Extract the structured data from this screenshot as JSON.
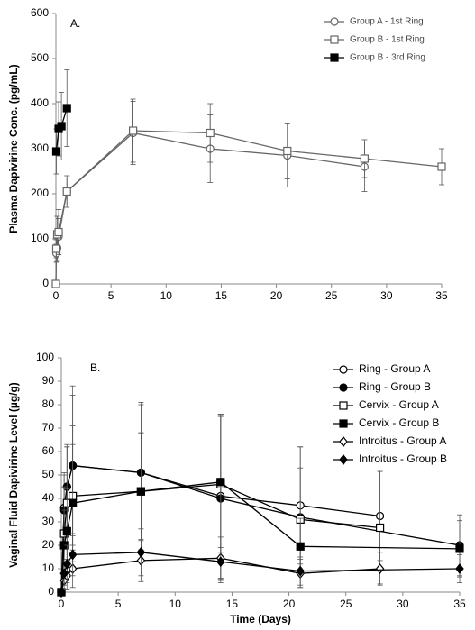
{
  "chart_data": [
    {
      "type": "line",
      "annotation": "A.",
      "y_label": "Plasma Dapivirine Conc. (pg/mL)",
      "xlim": [
        0,
        35
      ],
      "xticks": [
        0,
        5,
        10,
        15,
        20,
        25,
        30,
        35
      ],
      "ylim": [
        0,
        600
      ],
      "yticks": [
        0,
        100,
        200,
        300,
        400,
        500,
        600
      ],
      "legend": "upper right",
      "series": [
        {
          "name": "Group A - 1st Ring",
          "color": "#666666",
          "marker": "circle",
          "filled": false,
          "x": [
            0,
            0.04,
            0.125,
            0.25,
            1,
            7,
            14,
            21,
            28
          ],
          "values": [
            0,
            68,
            80,
            105,
            205,
            335,
            300,
            285,
            260
          ],
          "errors": [
            0,
            20,
            30,
            40,
            30,
            70,
            75,
            70,
            55
          ]
        },
        {
          "name": "Group B - 1st Ring",
          "color": "#666666",
          "marker": "square",
          "filled": false,
          "x": [
            0,
            0.04,
            0.125,
            0.25,
            1,
            7,
            14,
            21,
            28,
            35
          ],
          "values": [
            0,
            78,
            110,
            115,
            205,
            340,
            335,
            295,
            278,
            260
          ],
          "errors": [
            0,
            20,
            40,
            50,
            35,
            70,
            65,
            62,
            42,
            40
          ]
        },
        {
          "name": "Group B - 3rd Ring",
          "color": "#000000",
          "marker": "square",
          "filled": true,
          "x": [
            0.04,
            0.25,
            0.5,
            1
          ],
          "values": [
            294,
            344,
            350,
            390
          ],
          "errors": [
            50,
            60,
            75,
            85
          ]
        }
      ]
    },
    {
      "type": "line",
      "annotation": "B.",
      "x_label": "Time (Days)",
      "y_label": "Vaginal Fluid Dapivirine Level (µg/g)",
      "xlim": [
        0,
        35
      ],
      "xticks": [
        0,
        5,
        10,
        15,
        20,
        25,
        30,
        35
      ],
      "ylim": [
        0,
        100
      ],
      "yticks": [
        0,
        10,
        20,
        30,
        40,
        50,
        60,
        70,
        80,
        90,
        100
      ],
      "legend": "upper right",
      "series": [
        {
          "name": "Ring - Group A",
          "color": "#000000",
          "marker": "circle",
          "filled": false,
          "x": [
            0,
            0.25,
            0.5,
            1,
            7,
            14,
            21,
            28
          ],
          "values": [
            0,
            36,
            45,
            54,
            51,
            41,
            37,
            32.5
          ],
          "errors": [
            0,
            15,
            18,
            34,
            30,
            35,
            25,
            19
          ]
        },
        {
          "name": "Ring - Group B",
          "color": "#000000",
          "marker": "circle",
          "filled": true,
          "x": [
            0,
            0.25,
            0.5,
            1,
            7,
            14,
            21,
            35
          ],
          "values": [
            0,
            35,
            45,
            54,
            51,
            40,
            32,
            20
          ],
          "errors": [
            0,
            15,
            17,
            30,
            29,
            36,
            30,
            13
          ]
        },
        {
          "name": "Cervix - Group A",
          "color": "#000000",
          "marker": "square",
          "filled": false,
          "x": [
            0,
            0.25,
            0.5,
            1,
            7,
            14,
            21,
            28
          ],
          "values": [
            0,
            25,
            38,
            41,
            43,
            46,
            31,
            27.5
          ],
          "errors": [
            0,
            20,
            24,
            30,
            25,
            29,
            22,
            24
          ]
        },
        {
          "name": "Cervix - Group B",
          "color": "#000000",
          "marker": "square",
          "filled": true,
          "x": [
            0,
            0.25,
            0.5,
            1,
            7,
            14,
            21,
            35
          ],
          "values": [
            0,
            20,
            26,
            38,
            43,
            47,
            19.5,
            18.5
          ],
          "errors": [
            0,
            15,
            18,
            25,
            25,
            28,
            12,
            12
          ]
        },
        {
          "name": "Introitus - Group A",
          "color": "#000000",
          "marker": "diamond",
          "filled": false,
          "x": [
            0,
            0.25,
            0.5,
            1,
            7,
            14,
            21,
            28
          ],
          "values": [
            0,
            5,
            7,
            10,
            13.5,
            14.5,
            8,
            10
          ],
          "errors": [
            0,
            4,
            6,
            8,
            9,
            9,
            6,
            7
          ]
        },
        {
          "name": "Introitus - Group B",
          "color": "#000000",
          "marker": "diamond",
          "filled": true,
          "x": [
            0,
            0.25,
            0.5,
            1,
            7,
            14,
            21,
            35
          ],
          "values": [
            0,
            8,
            12,
            16,
            17,
            13,
            9,
            10
          ],
          "errors": [
            0,
            5,
            8,
            9,
            10,
            8,
            6,
            6
          ]
        }
      ]
    }
  ]
}
